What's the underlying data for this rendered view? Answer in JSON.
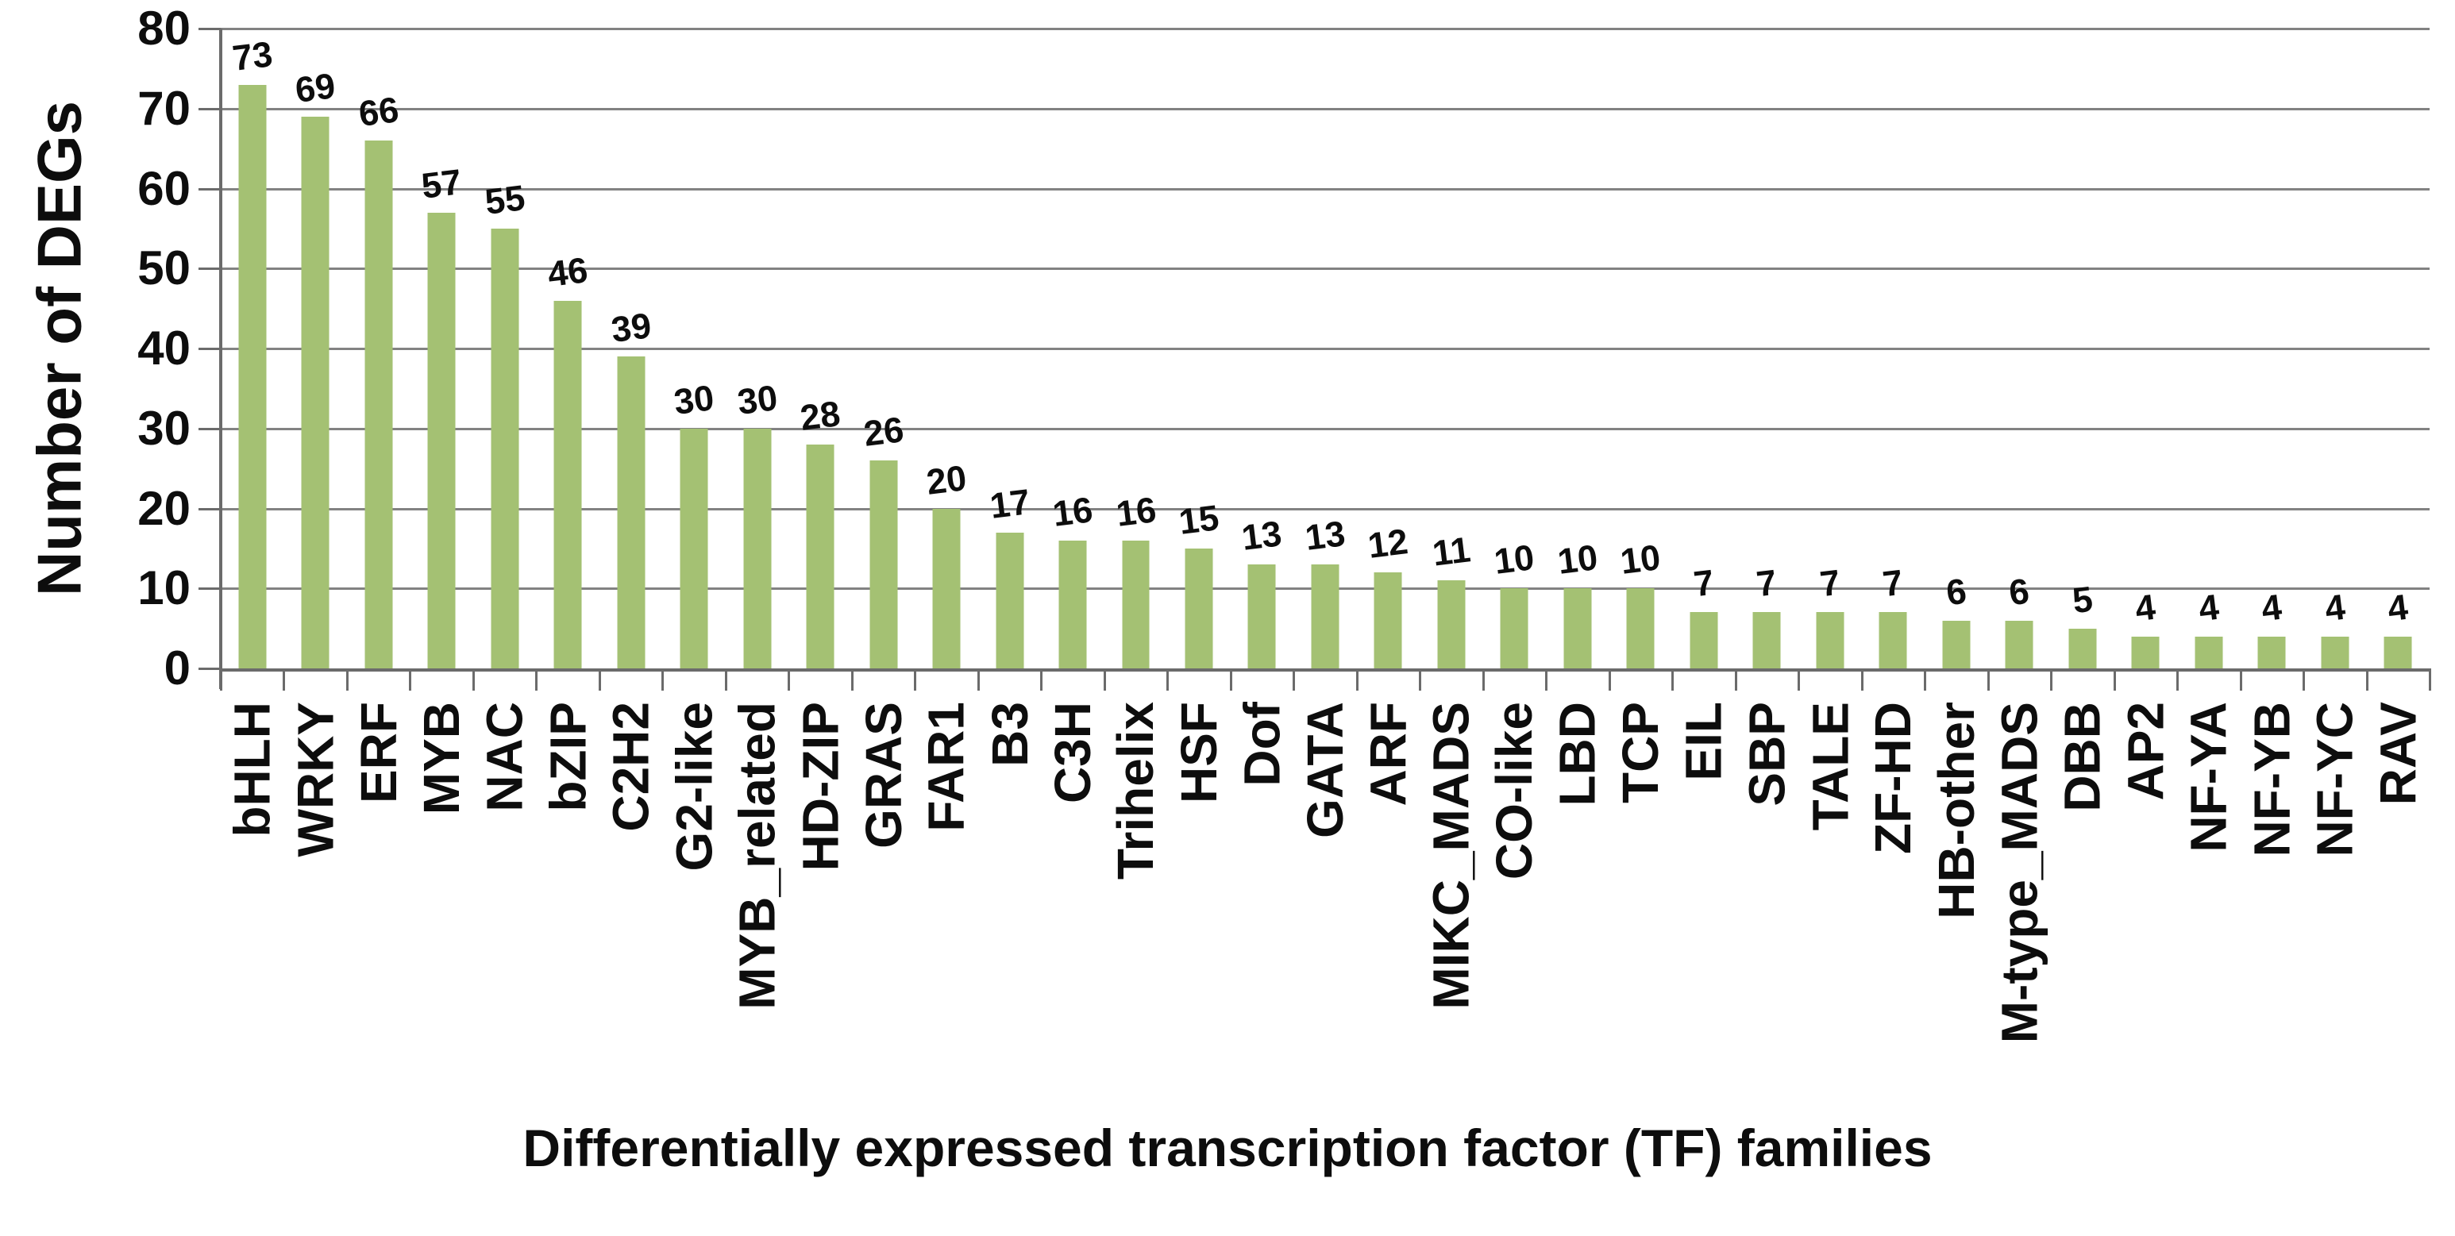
{
  "chart_data": {
    "type": "bar",
    "title": "",
    "xlabel": "Differentially expressed transcription factor (TF) families",
    "ylabel": "Number of DEGs",
    "categories": [
      "bHLH",
      "WRKY",
      "ERF",
      "MYB",
      "NAC",
      "bZIP",
      "C2H2",
      "G2-like",
      "MYB_related",
      "HD-ZIP",
      "GRAS",
      "FAR1",
      "B3",
      "C3H",
      "Trihelix",
      "HSF",
      "Dof",
      "GATA",
      "ARF",
      "MIKC_MADS",
      "CO-like",
      "LBD",
      "TCP",
      "EIL",
      "SBP",
      "TALE",
      "ZF-HD",
      "HB-other",
      "M-type_MADS",
      "DBB",
      "AP2",
      "NF-YA",
      "NF-YB",
      "NF-YC",
      "RAV"
    ],
    "values": [
      73,
      69,
      66,
      57,
      55,
      46,
      39,
      30,
      30,
      28,
      26,
      20,
      17,
      16,
      16,
      15,
      13,
      13,
      12,
      11,
      10,
      10,
      10,
      7,
      7,
      7,
      7,
      6,
      6,
      5,
      4,
      4,
      4,
      4,
      4
    ],
    "value_labels_shown": true,
    "ylim": [
      0,
      80
    ],
    "yticks": [
      0,
      10,
      20,
      30,
      40,
      50,
      60,
      70,
      80
    ],
    "grid": "horizontal",
    "legend_position": "none",
    "colors": {
      "bar_fill": "#a4c173",
      "gridline": "#828282",
      "axis_line": "#6b6b6b",
      "text": "#0d0d0d",
      "background": "#ffffff"
    }
  }
}
